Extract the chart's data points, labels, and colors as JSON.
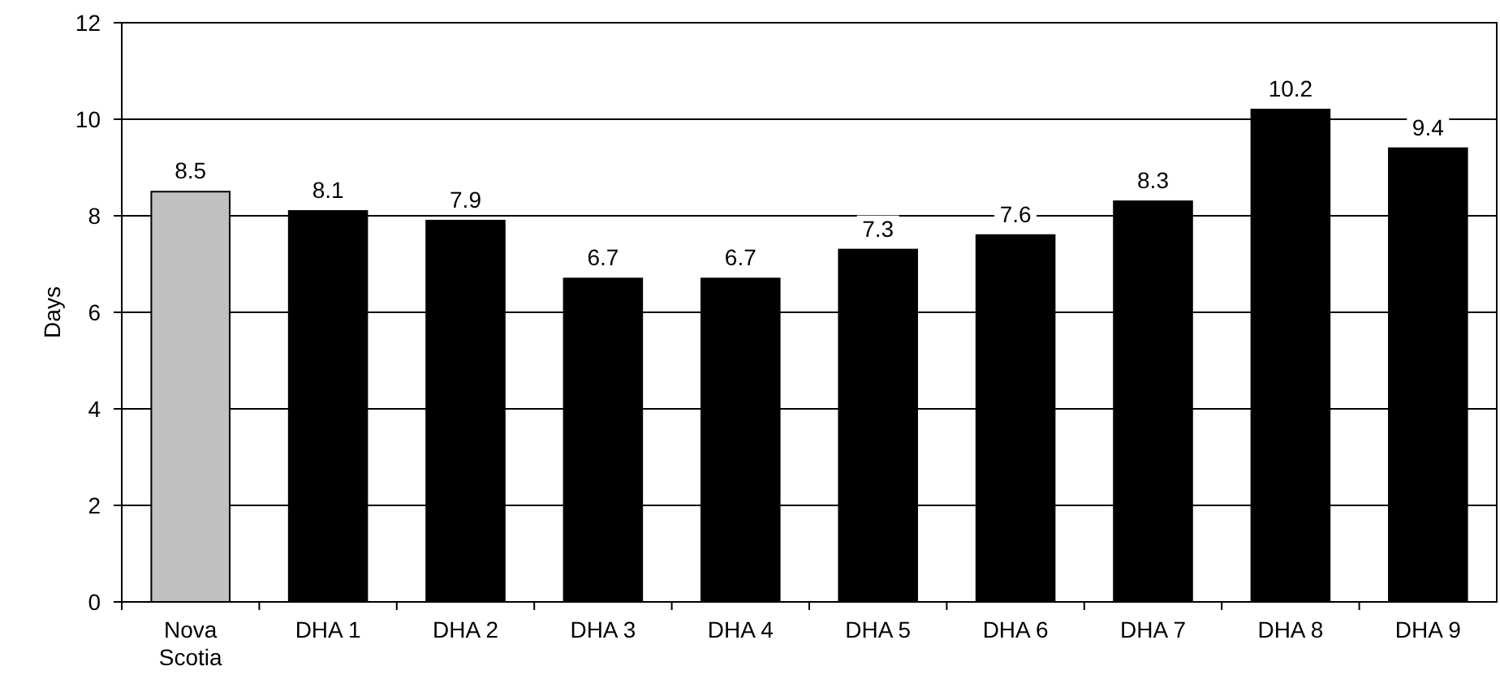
{
  "chart_data": {
    "type": "bar",
    "ylabel": "Days",
    "categories": [
      "Nova Scotia",
      "DHA 1",
      "DHA 2",
      "DHA 3",
      "DHA 4",
      "DHA 5",
      "DHA 6",
      "DHA 7",
      "DHA 8",
      "DHA 9"
    ],
    "values": [
      8.5,
      8.1,
      7.9,
      6.7,
      6.7,
      7.3,
      7.6,
      8.3,
      10.2,
      9.4
    ],
    "colors": [
      "#c0c0c0",
      "#000000",
      "#000000",
      "#000000",
      "#000000",
      "#000000",
      "#000000",
      "#000000",
      "#000000",
      "#000000"
    ],
    "ylim": [
      0,
      12
    ],
    "yticks": [
      0,
      2,
      4,
      6,
      8,
      10,
      12
    ],
    "grid": "y",
    "data_labels": true
  }
}
